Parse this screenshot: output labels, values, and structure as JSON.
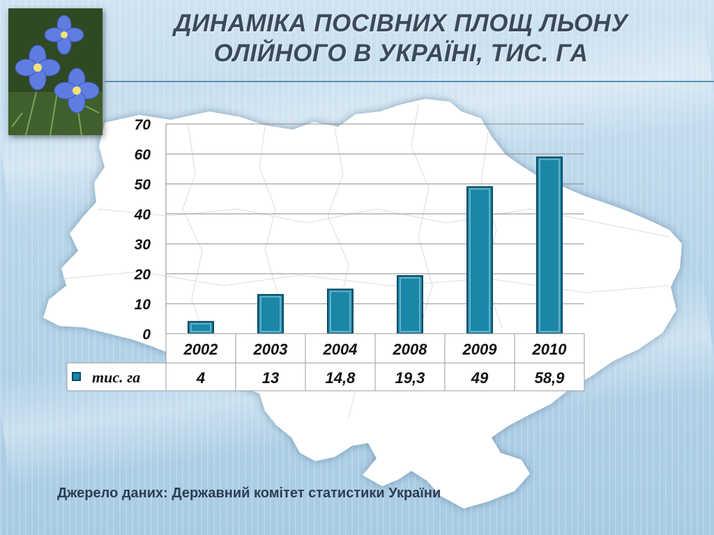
{
  "slide": {
    "title_line1": "ДИНАМІКА ПОСІВНИХ ПЛОЩ ЛЬОНУ",
    "title_line2": "ОЛІЙНОГО В УКРАЇНІ, ТИС. ГА",
    "source": "Джерело даних: Державний комітет статистики України"
  },
  "colors": {
    "bar_fill": "#1a86a8",
    "bar_edge": "#0b4a63",
    "map_fill": "#ffffff",
    "title": "#3b4a5a"
  },
  "icons": {
    "photo": "flax-flowers-photo",
    "map": "ukraine-map-silhouette"
  },
  "chart_data": {
    "type": "bar",
    "categories": [
      "2002",
      "2003",
      "2004",
      "2008",
      "2009",
      "2010"
    ],
    "series": [
      {
        "name": "тис. га",
        "values": [
          4,
          13,
          14.8,
          19.3,
          49,
          58.9
        ],
        "value_labels": [
          "4",
          "13",
          "14,8",
          "19,3",
          "49",
          "58,9"
        ]
      }
    ],
    "ylim": [
      0,
      70
    ],
    "yticks": [
      "0",
      "10",
      "20",
      "30",
      "40",
      "50",
      "60",
      "70"
    ],
    "grid": true,
    "data_table": true
  }
}
